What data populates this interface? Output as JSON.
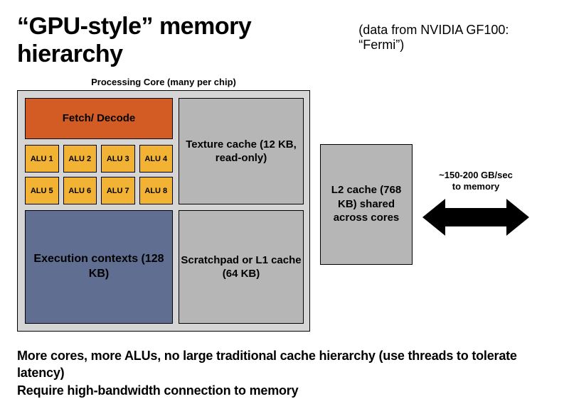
{
  "title": {
    "main": "“GPU-style” memory hierarchy",
    "sub": "(data from NVIDIA GF100: “Fermi”)"
  },
  "core_label": "Processing Core (many per chip)",
  "core": {
    "fetch": {
      "label": "Fetch/\nDecode",
      "bg": "#d35c24",
      "border": "#000000"
    },
    "alus": {
      "bg": "#f2b233",
      "border": "#000000",
      "labels": [
        "ALU 1",
        "ALU 2",
        "ALU 3",
        "ALU 4",
        "ALU 5",
        "ALU 6",
        "ALU 7",
        "ALU 8"
      ]
    },
    "exec": {
      "label": "Execution\ncontexts\n(128 KB)",
      "bg": "#5f6e91",
      "border": "#000000"
    },
    "texture": {
      "label": "Texture cache\n(12 KB, read-only)",
      "bg": "#b6b6b6",
      "border": "#000000"
    },
    "scratch": {
      "label": "Scratchpad\nor\nL1 cache\n(64 KB)",
      "bg": "#b6b6b6",
      "border": "#000000"
    },
    "panel_bg": "#d5d5d5"
  },
  "l2": {
    "label": "L2 cache\n(768 KB)\nshared across cores",
    "bg": "#b6b6b6",
    "border": "#000000"
  },
  "arrow": {
    "label": "~150-200 GB/sec\nto memory",
    "color": "#000000"
  },
  "footer": {
    "line1": "More cores, more ALUs, no large traditional cache hierarchy (use threads to tolerate latency)",
    "line2": "Require high-bandwidth connection to memory"
  },
  "diagram_type": "infographic"
}
